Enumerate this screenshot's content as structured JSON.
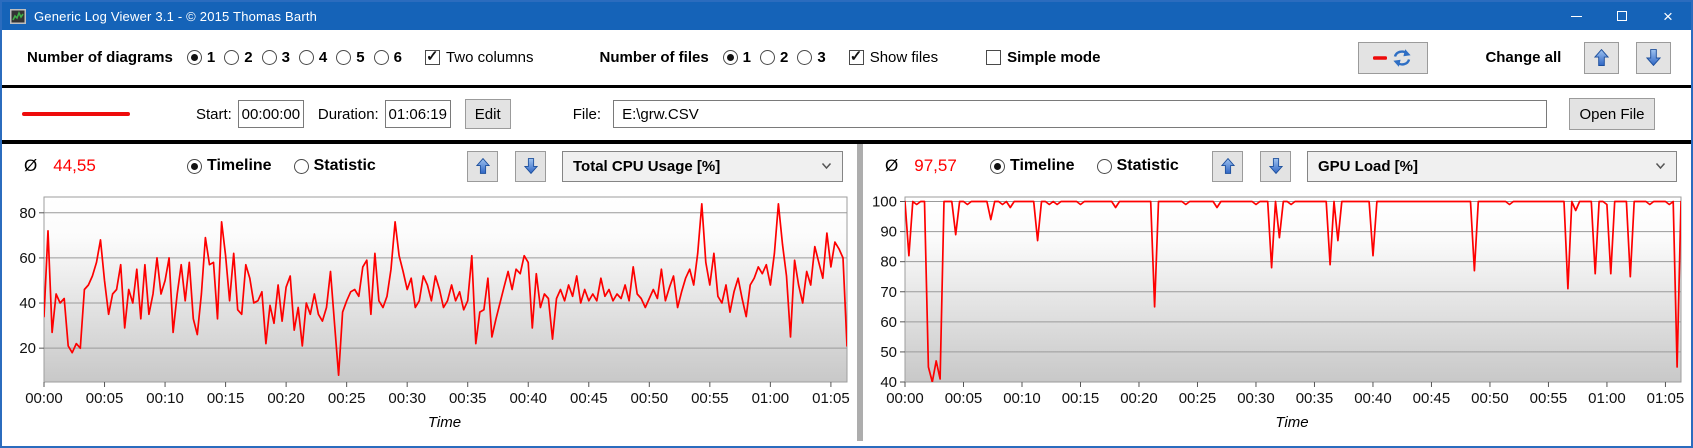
{
  "window": {
    "title": "Generic Log Viewer 3.1 - © 2015 Thomas Barth"
  },
  "toolbar": {
    "diagrams_label": "Number of diagrams",
    "diagram_options": [
      {
        "label": "1",
        "selected": true
      },
      {
        "label": "2",
        "selected": false
      },
      {
        "label": "3",
        "selected": false
      },
      {
        "label": "4",
        "selected": false
      },
      {
        "label": "5",
        "selected": false
      },
      {
        "label": "6",
        "selected": false
      }
    ],
    "two_columns_label": "Two columns",
    "two_columns_checked": true,
    "files_label": "Number of files",
    "file_options": [
      {
        "label": "1",
        "selected": true
      },
      {
        "label": "2",
        "selected": false
      },
      {
        "label": "3",
        "selected": false
      }
    ],
    "show_files_label": "Show files",
    "show_files_checked": true,
    "simple_mode_label": "Simple mode",
    "simple_mode_checked": false,
    "change_all_label": "Change all"
  },
  "filebar": {
    "start_label": "Start:",
    "start_value": "00:00:00",
    "duration_label": "Duration:",
    "duration_value": "01:06:19",
    "edit_button": "Edit",
    "file_label": "File:",
    "file_value": "E:\\grw.CSV",
    "open_file_button": "Open File"
  },
  "panels": [
    {
      "average_symbol": "Ø",
      "average_value": "44,55",
      "mode_options": [
        {
          "label": "Timeline",
          "selected": true
        },
        {
          "label": "Statistic",
          "selected": false
        }
      ],
      "dropdown_value": "Total CPU Usage [%]"
    },
    {
      "average_symbol": "Ø",
      "average_value": "97,57",
      "mode_options": [
        {
          "label": "Timeline",
          "selected": true
        },
        {
          "label": "Statistic",
          "selected": false
        }
      ],
      "dropdown_value": "GPU Load [%]"
    }
  ],
  "colors": {
    "accent_blue": "#1563b8",
    "line_red": "#fe0000",
    "average_red": "#ff0000"
  },
  "chart_data": [
    {
      "type": "line",
      "title": "Total CPU Usage [%]",
      "xlabel": "Time",
      "x_tick_minutes": [
        0,
        5,
        10,
        15,
        20,
        25,
        30,
        35,
        40,
        45,
        50,
        55,
        60,
        65
      ],
      "x_tick_labels": [
        "00:00",
        "00:05",
        "00:10",
        "00:15",
        "00:20",
        "00:25",
        "00:30",
        "00:35",
        "00:40",
        "00:45",
        "00:50",
        "00:55",
        "01:00",
        "01:05"
      ],
      "xlim_minutes": [
        0,
        66.33
      ],
      "ylim": [
        5,
        87
      ],
      "yticks": [
        20,
        40,
        60,
        80
      ],
      "grid": true,
      "average": 44.55,
      "sample_interval_seconds": 20,
      "series": [
        {
          "name": "E:\\grw.CSV",
          "color": "#fe0000",
          "values": [
            34,
            72,
            27,
            44,
            40,
            42,
            21,
            18,
            22,
            20,
            46,
            48,
            52,
            58,
            68,
            50,
            35,
            44,
            46,
            57,
            29,
            46,
            40,
            55,
            33,
            57,
            35,
            44,
            60,
            44,
            50,
            60,
            27,
            44,
            57,
            41,
            58,
            33,
            26,
            44,
            69,
            57,
            58,
            33,
            76,
            61,
            41,
            62,
            37,
            35,
            57,
            51,
            40,
            41,
            45,
            22,
            39,
            31,
            48,
            32,
            47,
            52,
            28,
            38,
            21,
            40,
            35,
            44,
            35,
            32,
            38,
            54,
            31,
            8,
            36,
            41,
            45,
            46,
            43,
            56,
            59,
            35,
            62,
            41,
            38,
            43,
            55,
            76,
            61,
            54,
            46,
            51,
            38,
            41,
            52,
            48,
            41,
            52,
            46,
            38,
            41,
            48,
            41,
            45,
            37,
            41,
            61,
            22,
            36,
            37,
            51,
            25,
            33,
            40,
            47,
            54,
            46,
            55,
            53,
            61,
            58,
            29,
            53,
            38,
            44,
            42,
            24,
            42,
            46,
            41,
            48,
            43,
            52,
            40,
            46,
            41,
            44,
            41,
            51,
            43,
            46,
            41,
            44,
            42,
            48,
            41,
            56,
            44,
            42,
            38,
            42,
            46,
            42,
            55,
            41,
            47,
            52,
            38,
            45,
            51,
            55,
            48,
            62,
            84,
            58,
            48,
            62,
            43,
            40,
            48,
            36,
            45,
            51,
            42,
            34,
            48,
            51,
            56,
            53,
            57,
            48,
            62,
            84,
            66,
            52,
            25,
            59,
            48,
            40,
            54,
            48,
            65,
            58,
            51,
            71,
            56,
            67,
            64,
            60,
            21
          ]
        }
      ]
    },
    {
      "type": "line",
      "title": "GPU Load [%]",
      "xlabel": "Time",
      "x_tick_minutes": [
        0,
        5,
        10,
        15,
        20,
        25,
        30,
        35,
        40,
        45,
        50,
        55,
        60,
        65
      ],
      "x_tick_labels": [
        "00:00",
        "00:05",
        "00:10",
        "00:15",
        "00:20",
        "00:25",
        "00:30",
        "00:35",
        "00:40",
        "00:45",
        "00:50",
        "00:55",
        "01:00",
        "01:05"
      ],
      "xlim_minutes": [
        0,
        66.33
      ],
      "ylim": [
        40,
        101.5
      ],
      "yticks": [
        40,
        50,
        60,
        70,
        80,
        90,
        100
      ],
      "grid": true,
      "average": 97.57,
      "sample_interval_seconds": 20,
      "series": [
        {
          "name": "E:\\grw.CSV",
          "color": "#fe0000",
          "values": [
            100,
            82,
            100,
            99,
            100,
            100,
            45,
            40,
            47,
            41,
            100,
            100,
            100,
            89,
            100,
            100,
            99,
            100,
            100,
            100,
            100,
            100,
            94,
            100,
            100,
            99,
            100,
            98,
            100,
            100,
            100,
            100,
            100,
            100,
            87,
            100,
            100,
            99,
            100,
            99,
            100,
            100,
            100,
            100,
            100,
            99,
            100,
            100,
            100,
            100,
            100,
            100,
            100,
            100,
            98,
            100,
            100,
            100,
            100,
            100,
            100,
            100,
            100,
            100,
            65,
            100,
            100,
            100,
            100,
            100,
            100,
            100,
            99,
            100,
            100,
            100,
            100,
            100,
            100,
            100,
            98,
            100,
            100,
            100,
            100,
            100,
            100,
            100,
            100,
            100,
            99,
            100,
            100,
            100,
            78,
            100,
            88,
            100,
            100,
            99,
            100,
            100,
            100,
            100,
            100,
            100,
            100,
            100,
            100,
            79,
            100,
            87,
            100,
            100,
            100,
            100,
            100,
            100,
            100,
            100,
            82,
            100,
            100,
            100,
            100,
            100,
            100,
            100,
            100,
            100,
            100,
            100,
            100,
            100,
            100,
            100,
            100,
            100,
            100,
            100,
            100,
            100,
            100,
            100,
            100,
            100,
            77,
            100,
            100,
            100,
            100,
            100,
            100,
            100,
            100,
            99,
            100,
            100,
            100,
            100,
            100,
            100,
            100,
            100,
            100,
            100,
            100,
            100,
            100,
            100,
            71,
            100,
            97,
            100,
            100,
            100,
            100,
            76,
            100,
            100,
            99,
            76,
            100,
            100,
            100,
            100,
            75,
            100,
            100,
            100,
            100,
            99,
            100,
            100,
            100,
            100,
            99,
            100,
            45,
            100
          ]
        }
      ]
    }
  ]
}
